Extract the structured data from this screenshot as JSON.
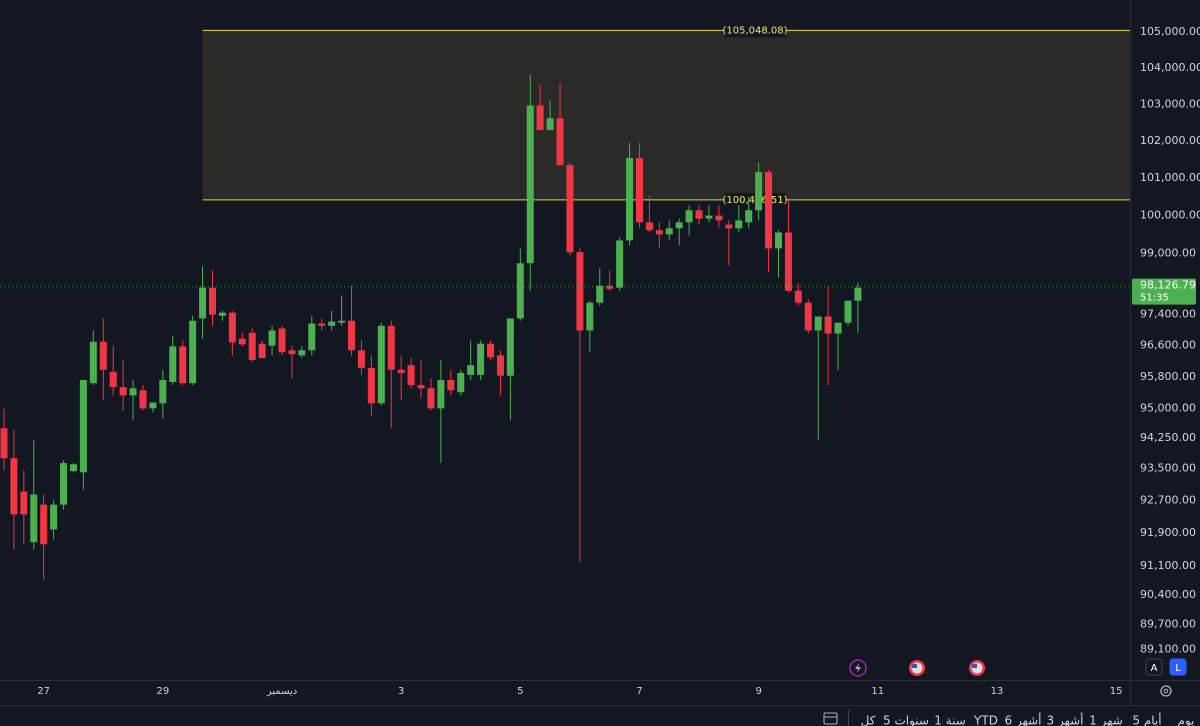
{
  "chart_data": {
    "type": "candlestick",
    "log_scale": true,
    "up_color": "#4caf50",
    "down_color": "#f23645",
    "open": [
      94500,
      93750,
      92920,
      91680,
      92600,
      91990,
      92600,
      93430,
      93400,
      95640,
      96700,
      95930,
      95540,
      95330,
      95460,
      95000,
      95130,
      95670,
      96580,
      95640,
      97300,
      98100,
      97370,
      97450,
      96780,
      96930,
      96650,
      96600,
      97040,
      96480,
      96350,
      96480,
      97170,
      97110,
      97190,
      97240,
      96480,
      96030,
      95130,
      97110,
      95980,
      96100,
      95590,
      95510,
      95000,
      95720,
      95410,
      95850,
      95850,
      96650,
      96350,
      95830,
      97300,
      98740,
      102970,
      102300,
      102620,
      101350,
      99030,
      96990,
      97710,
      98150,
      98100,
      99340,
      101540,
      99820,
      99610,
      99500,
      99660,
      99820,
      100140,
      99920,
      100000,
      99760,
      99660,
      99820,
      100140,
      101160,
      99130,
      99550,
      98020,
      97710,
      96990,
      97350,
      96910,
      97190,
      97760
    ],
    "high": [
      95000,
      94450,
      93450,
      94200,
      92850,
      92720,
      93700,
      93630,
      95720,
      96990,
      97300,
      96600,
      96230,
      95720,
      95590,
      95150,
      95980,
      96860,
      96730,
      97370,
      98660,
      98550,
      97500,
      97500,
      96930,
      97040,
      96730,
      97110,
      97110,
      96600,
      96580,
      97370,
      97300,
      97500,
      97890,
      98150,
      96730,
      96350,
      97190,
      97240,
      96350,
      96280,
      96230,
      95770,
      96230,
      95980,
      95980,
      96730,
      96730,
      96730,
      96480,
      97300,
      99130,
      103830,
      103530,
      103110,
      103580,
      101410,
      99130,
      97760,
      98600,
      98550,
      99420,
      101950,
      101950,
      100540,
      99820,
      99870,
      99920,
      100270,
      100270,
      100270,
      100270,
      99870,
      100270,
      100510,
      101410,
      101220,
      99610,
      100410,
      98210,
      97810,
      97350,
      98130,
      97190,
      97760,
      98230
    ],
    "low": [
      93450,
      91500,
      91630,
      91500,
      90760,
      91750,
      92480,
      93400,
      92970,
      95590,
      95210,
      95330,
      94950,
      94700,
      94950,
      94900,
      94750,
      95590,
      95590,
      95590,
      96780,
      97110,
      97240,
      96350,
      96580,
      96180,
      96280,
      96350,
      96350,
      95770,
      96280,
      96350,
      96990,
      96990,
      97110,
      96350,
      95850,
      94820,
      95080,
      94500,
      95210,
      95500,
      95260,
      94950,
      93630,
      95330,
      95330,
      95720,
      95720,
      96230,
      95330,
      94700,
      97240,
      98020,
      102300,
      102300,
      101350,
      98950,
      91200,
      96430,
      97630,
      98020,
      98020,
      99210,
      99680,
      99550,
      99130,
      99340,
      99210,
      99470,
      99760,
      99820,
      99680,
      98680,
      99550,
      99660,
      99870,
      98500,
      98370,
      97970,
      97630,
      96910,
      94200,
      95590,
      95980,
      97110,
      96930
    ],
    "close": [
      93750,
      92360,
      92360,
      92850,
      91630,
      92600,
      93630,
      93600,
      95720,
      96700,
      95980,
      95540,
      95330,
      95510,
      95000,
      95150,
      95720,
      96580,
      95640,
      97240,
      98100,
      97400,
      97450,
      96680,
      96630,
      96230,
      96280,
      96990,
      96430,
      96380,
      96480,
      97170,
      97110,
      97220,
      97240,
      96480,
      96030,
      95130,
      97110,
      95980,
      95900,
      95590,
      95510,
      95000,
      95720,
      95460,
      95900,
      96100,
      96650,
      96300,
      95830,
      97300,
      98740,
      102970,
      102300,
      102620,
      101350,
      99030,
      96990,
      97710,
      98150,
      98070,
      99340,
      101540,
      99820,
      99610,
      99500,
      99660,
      99820,
      100140,
      99920,
      100000,
      99870,
      99660,
      99870,
      100140,
      101160,
      99130,
      99550,
      98020,
      97710,
      96990,
      97350,
      96910,
      97190,
      97760,
      98100
    ],
    "ylim": [
      88380,
      105900
    ],
    "yticks": [
      {
        "value": 105000,
        "label": "105,000.00"
      },
      {
        "value": 104000,
        "label": "104,000.00"
      },
      {
        "value": 103000,
        "label": "103,000.00"
      },
      {
        "value": 102000,
        "label": "102,000.00"
      },
      {
        "value": 101000,
        "label": "101,000.00"
      },
      {
        "value": 100000,
        "label": "100,000.00"
      },
      {
        "value": 99000,
        "label": "99,000.00"
      },
      {
        "value": 97400,
        "label": "97,400.00"
      },
      {
        "value": 96600,
        "label": "96,600.00"
      },
      {
        "value": 95800,
        "label": "95,800.00"
      },
      {
        "value": 95000,
        "label": "95,000.00"
      },
      {
        "value": 94250,
        "label": "94,250.00"
      },
      {
        "value": 93500,
        "label": "93,500.00"
      },
      {
        "value": 92700,
        "label": "92,700.00"
      },
      {
        "value": 91900,
        "label": "91,900.00"
      },
      {
        "value": 91100,
        "label": "91,100.00"
      },
      {
        "value": 90400,
        "label": "90,400.00"
      },
      {
        "value": 89700,
        "label": "89,700.00"
      },
      {
        "value": 89100,
        "label": "89,100.00"
      }
    ],
    "xlim": [
      -0.4,
      113.4
    ],
    "xticks": [
      {
        "value": 4,
        "label": "27"
      },
      {
        "value": 16,
        "label": "29"
      },
      {
        "value": 28,
        "label": "ديسمبر"
      },
      {
        "value": 40,
        "label": "3"
      },
      {
        "value": 52,
        "label": "5"
      },
      {
        "value": 64,
        "label": "7"
      },
      {
        "value": 76,
        "label": "9"
      },
      {
        "value": 88,
        "label": "11"
      },
      {
        "value": 100,
        "label": "13"
      },
      {
        "value": 112,
        "label": "15"
      }
    ],
    "current_price": 98126.79,
    "current_price_label": "98,126.79",
    "countdown": "51:35",
    "zone": {
      "start": 20,
      "top": 105048.08,
      "top_label": "(105,048.08)",
      "bottom": 100416.51,
      "bottom_label": "(100,416.51)"
    }
  },
  "scale_buttons": [
    "A",
    "L"
  ],
  "toolbar": [
    "كل",
    "5 سنوات",
    "1 سنة",
    "YTD",
    "6 أشهر",
    "3 أشهر",
    "1 شهر",
    "5 أيام",
    "يوم"
  ]
}
